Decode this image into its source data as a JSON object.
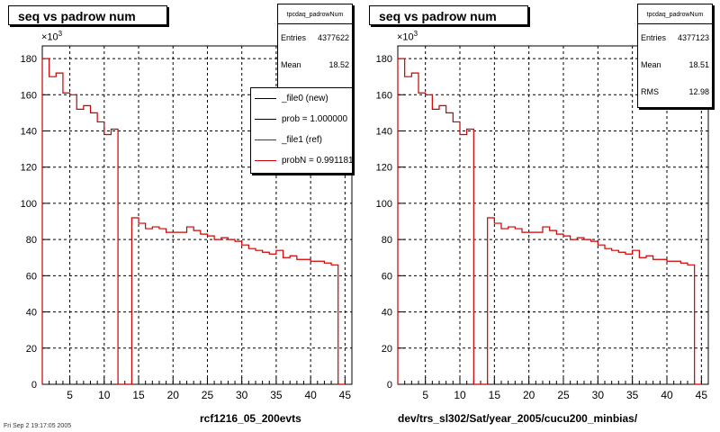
{
  "chart_data": [
    {
      "type": "histogram",
      "title": "seq vs padrow num",
      "histogram_name": "tpcdaq_padrowNum",
      "x_range": [
        1,
        46
      ],
      "ylim": [
        0,
        187
      ],
      "y_ticks": [
        0,
        20,
        40,
        60,
        80,
        100,
        120,
        140,
        160,
        180
      ],
      "x_ticks": [
        5,
        10,
        15,
        20,
        25,
        30,
        35,
        40,
        45
      ],
      "y_multiplier": "×10",
      "y_multiplier_exp": "3",
      "xlabel": "rcf1216_05_200evts",
      "grid": true,
      "stats": [
        {
          "label": "Entries",
          "value": "4377622"
        },
        {
          "label": "Mean",
          "value": "18.52"
        }
      ],
      "legend": [
        {
          "label": "_file0 (new)",
          "color": "#000000"
        },
        {
          "label": "prob = 1.000000",
          "color": "#000000"
        },
        {
          "label": "_file1 (ref)",
          "color": "#cc0000"
        },
        {
          "label": "probN = 0.991181",
          "color": "#cc0000"
        }
      ],
      "series": [
        {
          "color": "#cc0000",
          "values": [
            180,
            170,
            172,
            161,
            160,
            152,
            154,
            150,
            145,
            138,
            141,
            0,
            0,
            92,
            89,
            86,
            87,
            86,
            84,
            84,
            84,
            87,
            85,
            83,
            82,
            80,
            81,
            80,
            79,
            77,
            75,
            74,
            73,
            72,
            74,
            70,
            71,
            69,
            69,
            68,
            68,
            67,
            66,
            0
          ]
        }
      ]
    },
    {
      "type": "histogram",
      "title": "seq vs padrow num",
      "histogram_name": "tpcdaq_padrowNum",
      "x_range": [
        1,
        46
      ],
      "ylim": [
        0,
        187
      ],
      "y_ticks": [
        0,
        20,
        40,
        60,
        80,
        100,
        120,
        140,
        160,
        180
      ],
      "x_ticks": [
        5,
        10,
        15,
        20,
        25,
        30,
        35,
        40,
        45
      ],
      "y_multiplier": "×10",
      "y_multiplier_exp": "3",
      "xlabel": "dev/trs_sl302/Sat/year_2005/cucu200_minbias/",
      "grid": true,
      "stats": [
        {
          "label": "Entries",
          "value": "4377123"
        },
        {
          "label": "Mean",
          "value": "18.51"
        },
        {
          "label": "RMS",
          "value": "12.98"
        }
      ],
      "series": [
        {
          "color": "#cc0000",
          "values": [
            180,
            170,
            172,
            161,
            160,
            152,
            154,
            150,
            145,
            138,
            141,
            0,
            0,
            92,
            89,
            86,
            87,
            86,
            84,
            84,
            84,
            87,
            85,
            83,
            82,
            80,
            81,
            80,
            79,
            77,
            75,
            74,
            73,
            72,
            74,
            70,
            71,
            69,
            69,
            68,
            68,
            67,
            66,
            0
          ]
        }
      ]
    }
  ],
  "footer_text": "Fri Sep  2 19:17:05 2005"
}
